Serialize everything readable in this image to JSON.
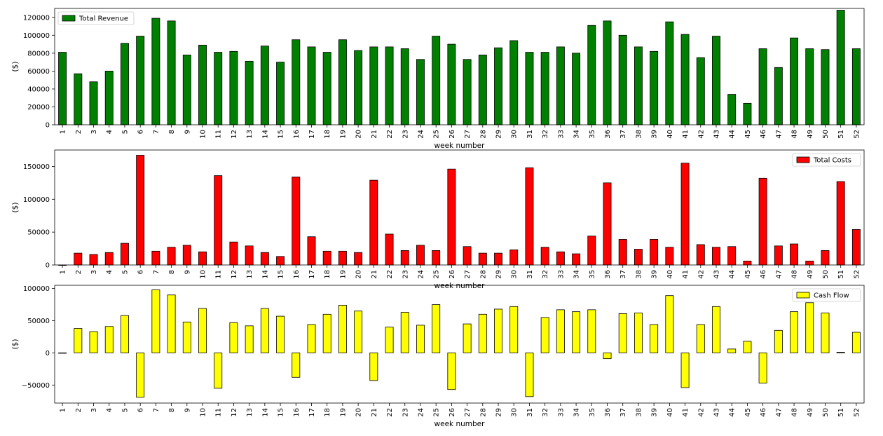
{
  "chart_data": [
    {
      "type": "bar",
      "categories": [
        "1",
        "2",
        "3",
        "4",
        "5",
        "6",
        "7",
        "8",
        "9",
        "10",
        "11",
        "12",
        "13",
        "14",
        "15",
        "16",
        "17",
        "18",
        "19",
        "20",
        "21",
        "22",
        "23",
        "24",
        "25",
        "26",
        "27",
        "28",
        "29",
        "30",
        "31",
        "32",
        "33",
        "34",
        "35",
        "36",
        "37",
        "38",
        "39",
        "40",
        "41",
        "42",
        "43",
        "44",
        "45",
        "46",
        "47",
        "48",
        "49",
        "50",
        "51",
        "52"
      ],
      "series": [
        {
          "name": "Total Revenue",
          "color": "#008000",
          "values": [
            81000,
            57000,
            48000,
            60000,
            91000,
            99000,
            119000,
            116000,
            78000,
            89000,
            81000,
            82000,
            71000,
            88000,
            70000,
            95000,
            87000,
            81000,
            95000,
            83000,
            87000,
            87000,
            85000,
            73000,
            99000,
            90000,
            73000,
            78000,
            86000,
            94000,
            81000,
            81000,
            87000,
            80000,
            111000,
            116000,
            100000,
            87000,
            82000,
            115000,
            101000,
            75000,
            99000,
            34000,
            24000,
            85000,
            64000,
            97000,
            85000,
            84000,
            128000,
            85000
          ]
        }
      ],
      "xlabel": "week number",
      "ylabel": "($)",
      "ylim": [
        0,
        130000
      ],
      "yticks": [
        0,
        20000,
        40000,
        60000,
        80000,
        100000,
        120000
      ],
      "legend_position": "upper-left",
      "grid": false
    },
    {
      "type": "bar",
      "categories": [
        "1",
        "2",
        "3",
        "4",
        "5",
        "6",
        "7",
        "8",
        "9",
        "10",
        "11",
        "12",
        "13",
        "14",
        "15",
        "16",
        "17",
        "18",
        "19",
        "20",
        "21",
        "22",
        "23",
        "24",
        "25",
        "26",
        "27",
        "28",
        "29",
        "30",
        "31",
        "32",
        "33",
        "34",
        "35",
        "36",
        "37",
        "38",
        "39",
        "40",
        "41",
        "42",
        "43",
        "44",
        "45",
        "46",
        "47",
        "48",
        "49",
        "50",
        "51",
        "52"
      ],
      "series": [
        {
          "name": "Total Costs",
          "color": "#ff0000",
          "values": [
            0,
            18000,
            16000,
            19000,
            33000,
            167000,
            21000,
            27000,
            30000,
            20000,
            136000,
            35000,
            29000,
            19000,
            13000,
            134000,
            43000,
            21000,
            21000,
            19000,
            129000,
            47000,
            22000,
            30000,
            22000,
            146000,
            28000,
            18000,
            18000,
            23000,
            148000,
            27000,
            20000,
            17000,
            44000,
            125000,
            39000,
            24000,
            39000,
            27000,
            155000,
            31000,
            27000,
            28000,
            6000,
            132000,
            29000,
            32000,
            6000,
            22000,
            127000,
            54000
          ]
        }
      ],
      "xlabel": "week number",
      "ylabel": "($)",
      "ylim": [
        0,
        175000
      ],
      "yticks": [
        0,
        50000,
        100000,
        150000
      ],
      "legend_position": "upper-right",
      "grid": false
    },
    {
      "type": "bar",
      "categories": [
        "1",
        "2",
        "3",
        "4",
        "5",
        "6",
        "7",
        "8",
        "9",
        "10",
        "11",
        "12",
        "13",
        "14",
        "15",
        "16",
        "17",
        "18",
        "19",
        "20",
        "21",
        "22",
        "23",
        "24",
        "25",
        "26",
        "27",
        "28",
        "29",
        "30",
        "31",
        "32",
        "33",
        "34",
        "35",
        "36",
        "37",
        "38",
        "39",
        "40",
        "41",
        "42",
        "43",
        "44",
        "45",
        "46",
        "47",
        "48",
        "49",
        "50",
        "51",
        "52"
      ],
      "series": [
        {
          "name": "Cash Flow",
          "color": "#ffff00",
          "values": [
            0,
            38000,
            33000,
            41000,
            58000,
            -69000,
            98000,
            90000,
            48000,
            69000,
            -55000,
            47000,
            42000,
            69000,
            57000,
            -38000,
            44000,
            60000,
            74000,
            65000,
            -43000,
            40000,
            63000,
            43000,
            75000,
            -57000,
            45000,
            60000,
            68000,
            72000,
            -68000,
            55000,
            67000,
            64000,
            67000,
            -9000,
            61000,
            62000,
            44000,
            89000,
            -54000,
            44000,
            72000,
            6000,
            18000,
            -47000,
            35000,
            64000,
            78000,
            62000,
            1000,
            32000
          ]
        }
      ],
      "xlabel": "week number",
      "ylabel": "($)",
      "ylim": [
        -78000,
        105000
      ],
      "yticks": [
        -50000,
        0,
        50000,
        100000
      ],
      "legend_position": "upper-right",
      "grid": false
    }
  ]
}
